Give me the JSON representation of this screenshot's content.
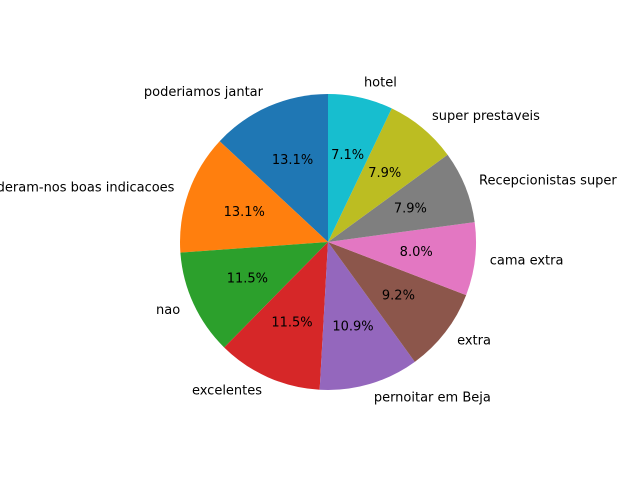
{
  "chart_data": {
    "type": "pie",
    "title": "",
    "start_angle_deg": 90,
    "direction": "counterclockwise",
    "slices": [
      {
        "label": "poderiamos jantar",
        "value": 13.1,
        "pct_text": "13.1%",
        "color": "#1f77b4"
      },
      {
        "label": "deram-nos boas indicacoes",
        "value": 13.1,
        "pct_text": "13.1%",
        "color": "#ff7f0e"
      },
      {
        "label": "nao",
        "value": 11.5,
        "pct_text": "11.5%",
        "color": "#2ca02c"
      },
      {
        "label": "excelentes",
        "value": 11.5,
        "pct_text": "11.5%",
        "color": "#d62728"
      },
      {
        "label": "pernoitar em Beja",
        "value": 10.9,
        "pct_text": "10.9%",
        "color": "#9467bd"
      },
      {
        "label": "extra",
        "value": 9.2,
        "pct_text": "9.2%",
        "color": "#8c564b"
      },
      {
        "label": "cama extra",
        "value": 8.0,
        "pct_text": "8.0%",
        "color": "#e377c2"
      },
      {
        "label": "Recepcionistas super",
        "value": 7.9,
        "pct_text": "7.9%",
        "color": "#7f7f7f"
      },
      {
        "label": "super prestaveis",
        "value": 7.9,
        "pct_text": "7.9%",
        "color": "#bcbd22"
      },
      {
        "label": "hotel",
        "value": 7.1,
        "pct_text": "7.1%",
        "color": "#17becf"
      }
    ]
  }
}
